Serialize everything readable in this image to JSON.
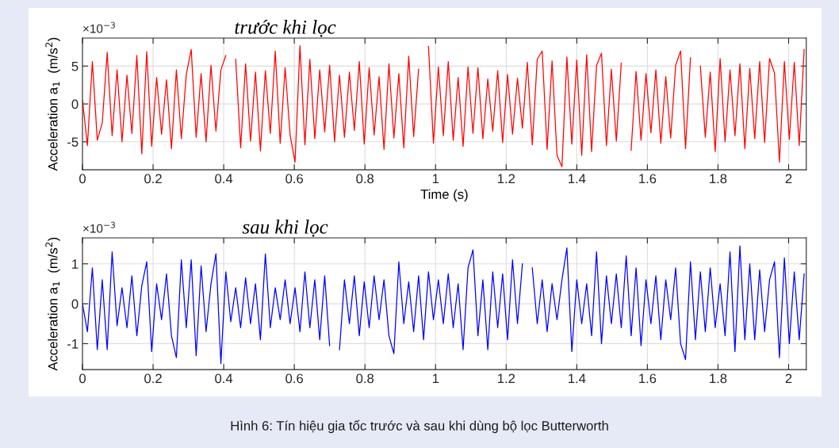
{
  "chart_data": [
    {
      "type": "line",
      "title": "trước khi lọc",
      "xlabel": "Time (s)",
      "ylabel": "Acceleration a$_{1}$  (m/s$^{2}$)",
      "annotations": [
        "×10$^{−3}$"
      ],
      "xlim": [
        0,
        2.05
      ],
      "xticks": [
        0,
        0.2,
        0.4,
        0.6,
        0.8,
        1,
        1.2,
        1.4,
        1.6,
        1.8,
        2
      ],
      "ylim": [
        -8.7,
        8.7
      ],
      "yticks": [
        -5,
        0,
        5
      ],
      "grid": true,
      "marker": "none",
      "line_style": "solid",
      "x": [
        0,
        0.014,
        0.028,
        0.042,
        0.056,
        0.07,
        0.084,
        0.098,
        0.112,
        0.126,
        0.14,
        0.154,
        0.168,
        0.182,
        0.196,
        0.21,
        0.224,
        0.238,
        0.252,
        0.266,
        0.28,
        0.294,
        0.308,
        0.322,
        0.336,
        0.35,
        0.364,
        0.378,
        0.392,
        0.406,
        0.42,
        0.434,
        0.448,
        0.462,
        0.476,
        0.49,
        0.504,
        0.518,
        0.532,
        0.546,
        0.56,
        0.574,
        0.588,
        0.602,
        0.616,
        0.63,
        0.644,
        0.658,
        0.672,
        0.686,
        0.7,
        0.714,
        0.728,
        0.742,
        0.756,
        0.77,
        0.784,
        0.798,
        0.812,
        0.826,
        0.84,
        0.854,
        0.868,
        0.882,
        0.896,
        0.91,
        0.924,
        0.938,
        0.952,
        0.966,
        0.98,
        0.994,
        1.008,
        1.022,
        1.036,
        1.05,
        1.064,
        1.078,
        1.092,
        1.106,
        1.12,
        1.134,
        1.148,
        1.162,
        1.176,
        1.19,
        1.204,
        1.218,
        1.232,
        1.246,
        1.26,
        1.274,
        1.288,
        1.302,
        1.316,
        1.33,
        1.344,
        1.358,
        1.372,
        1.386,
        1.4,
        1.414,
        1.428,
        1.442,
        1.456,
        1.47,
        1.484,
        1.498,
        1.512,
        1.526,
        1.54,
        1.554,
        1.568,
        1.582,
        1.596,
        1.61,
        1.624,
        1.638,
        1.652,
        1.666,
        1.68,
        1.694,
        1.708,
        1.722,
        1.736,
        1.75,
        1.764,
        1.778,
        1.792,
        1.806,
        1.82,
        1.834,
        1.848,
        1.862,
        1.876,
        1.89,
        1.904,
        1.918,
        1.932,
        1.946,
        1.96,
        1.974,
        1.988,
        2.002,
        2.016,
        2.03,
        2.044
      ],
      "series": [
        {
          "color": "#ff0000",
          "values": [
            0.5,
            -5.5,
            5.6,
            -4.8,
            -2.5,
            6.8,
            -4.2,
            4.5,
            -5.0,
            3.8,
            -3.9,
            6.4,
            -6.6,
            6.9,
            -5.6,
            3.5,
            -4.0,
            3.2,
            -5.9,
            4.5,
            -4.6,
            3.9,
            7.2,
            -4.4,
            4.0,
            -5.0,
            5.1,
            -3.6,
            4.5,
            6.4,
            null,
            5.9,
            -5.8,
            5.3,
            -4.9,
            4.2,
            -6.2,
            4.4,
            -3.9,
            7.0,
            -5.2,
            4.8,
            -4.1,
            -7.7,
            7.7,
            -5.4,
            5.9,
            -4.6,
            4.5,
            -3.7,
            5.1,
            -5.0,
            3.8,
            -4.4,
            4.2,
            -3.5,
            5.6,
            -5.3,
            4.8,
            -4.1,
            3.6,
            -6.0,
            5.3,
            -4.5,
            4.0,
            -5.8,
            6.3,
            -4.3,
            4.6,
            null,
            7.6,
            -5.2,
            4.9,
            -4.2,
            5.6,
            -4.8,
            3.5,
            -5.6,
            4.9,
            -3.9,
            4.8,
            -4.6,
            3.3,
            -3.6,
            4.4,
            -5.1,
            3.9,
            -4.0,
            3.4,
            -3.2,
            5.5,
            -5.4,
            5.9,
            7.0,
            -6.0,
            5.7,
            -6.8,
            -8.3,
            6.2,
            -5.3,
            5.8,
            -6.8,
            6.5,
            -6.3,
            5.1,
            6.7,
            -5.5,
            4.6,
            -4.9,
            5.4,
            null,
            -6.1,
            4.3,
            -4.8,
            4.0,
            -3.8,
            4.5,
            -5.2,
            3.6,
            -4.5,
            5.1,
            7.0,
            -5.9,
            6.1,
            null,
            5.0,
            -4.4,
            4.2,
            -6.3,
            6.0,
            -5.0,
            4.5,
            -4.2,
            5.3,
            -5.9,
            4.7,
            -4.6,
            5.6,
            -5.1,
            6.0,
            4.1,
            -7.7,
            5.6,
            -4.7,
            5.5,
            -5.5,
            7.2
          ]
        }
      ]
    },
    {
      "type": "line",
      "title": "sau khi lọc",
      "ylabel": "Acceleration a$_{1}$  (m/s$^{2}$)",
      "annotations": [
        "×10$^{−3}$",
        "Hình 6: Tín hiệu gia tốc trước và sau khi dùng bộ lọc Butterworth"
      ],
      "xlim": [
        0,
        2.05
      ],
      "xticks": [
        0,
        0.2,
        0.4,
        0.6,
        0.8,
        1,
        1.2,
        1.4,
        1.6,
        1.8,
        2
      ],
      "ylim": [
        -1.65,
        1.65
      ],
      "yticks": [
        -1,
        0,
        1
      ],
      "grid": true,
      "marker": "none",
      "line_style": "solid",
      "x": [
        0,
        0.014,
        0.028,
        0.042,
        0.056,
        0.07,
        0.084,
        0.098,
        0.112,
        0.126,
        0.14,
        0.154,
        0.168,
        0.182,
        0.196,
        0.21,
        0.224,
        0.238,
        0.252,
        0.266,
        0.28,
        0.294,
        0.308,
        0.322,
        0.336,
        0.35,
        0.364,
        0.378,
        0.392,
        0.406,
        0.42,
        0.434,
        0.448,
        0.462,
        0.476,
        0.49,
        0.504,
        0.518,
        0.532,
        0.546,
        0.56,
        0.574,
        0.588,
        0.602,
        0.616,
        0.63,
        0.644,
        0.658,
        0.672,
        0.686,
        0.7,
        0.714,
        0.728,
        0.742,
        0.756,
        0.77,
        0.784,
        0.798,
        0.812,
        0.826,
        0.84,
        0.854,
        0.868,
        0.882,
        0.896,
        0.91,
        0.924,
        0.938,
        0.952,
        0.966,
        0.98,
        0.994,
        1.008,
        1.022,
        1.036,
        1.05,
        1.064,
        1.078,
        1.092,
        1.106,
        1.12,
        1.134,
        1.148,
        1.162,
        1.176,
        1.19,
        1.204,
        1.218,
        1.232,
        1.246,
        1.26,
        1.274,
        1.288,
        1.302,
        1.316,
        1.33,
        1.344,
        1.358,
        1.372,
        1.386,
        1.4,
        1.414,
        1.428,
        1.442,
        1.456,
        1.47,
        1.484,
        1.498,
        1.512,
        1.526,
        1.54,
        1.554,
        1.568,
        1.582,
        1.596,
        1.61,
        1.624,
        1.638,
        1.652,
        1.666,
        1.68,
        1.694,
        1.708,
        1.722,
        1.736,
        1.75,
        1.764,
        1.778,
        1.792,
        1.806,
        1.82,
        1.834,
        1.848,
        1.862,
        1.876,
        1.89,
        1.904,
        1.918,
        1.932,
        1.946,
        1.96,
        1.974,
        1.988,
        2.002,
        2.016,
        2.03,
        2.044
      ],
      "series": [
        {
          "color": "#0000ff",
          "values": [
            0.0,
            -0.7,
            0.9,
            -1.15,
            0.6,
            -1.15,
            1.3,
            -0.55,
            0.4,
            -0.6,
            0.7,
            -0.8,
            0.45,
            1.05,
            -1.2,
            0.5,
            -0.4,
            0.75,
            -0.8,
            -1.35,
            1.1,
            -0.6,
            1.1,
            -1.3,
            0.95,
            -0.7,
            0.5,
            1.25,
            -1.5,
            0.8,
            -0.45,
            0.4,
            -0.6,
            0.65,
            -0.5,
            0.5,
            -0.9,
            1.25,
            -0.6,
            0.4,
            -0.4,
            0.6,
            -0.5,
            0.4,
            -0.7,
            0.8,
            -0.6,
            0.6,
            -0.9,
            0.7,
            -1.05,
            null,
            -1.15,
            0.6,
            -0.5,
            0.7,
            -0.8,
            0.55,
            -0.6,
            0.7,
            -0.4,
            0.6,
            -0.8,
            -1.25,
            1.05,
            -0.5,
            0.55,
            -0.7,
            0.7,
            -0.9,
            0.8,
            -0.4,
            0.6,
            -0.5,
            0.75,
            -0.6,
            0.5,
            -1.15,
            0.9,
            1.35,
            -0.8,
            0.6,
            -1.15,
            0.8,
            -0.6,
            0.75,
            -0.9,
            1.1,
            -0.5,
            1.0,
            null,
            0.9,
            -0.5,
            0.6,
            -0.7,
            0.5,
            -0.4,
            0.6,
            1.4,
            -1.2,
            0.6,
            -0.5,
            0.5,
            -0.8,
            1.3,
            -1.0,
            0.7,
            -0.5,
            0.75,
            -0.6,
            1.2,
            -0.8,
            0.9,
            -1.05,
            0.6,
            -0.5,
            0.7,
            -0.9,
            0.6,
            -0.4,
            0.9,
            -1.0,
            -1.4,
            1.05,
            -0.9,
            0.8,
            -0.7,
            0.9,
            -0.6,
            0.5,
            -0.8,
            1.3,
            -1.2,
            1.45,
            -0.9,
            1.0,
            -0.9,
            0.85,
            -0.7,
            0.6,
            1.05,
            -1.35,
            1.15,
            -1.0,
            0.8,
            -0.9,
            0.75
          ]
        }
      ]
    }
  ]
}
